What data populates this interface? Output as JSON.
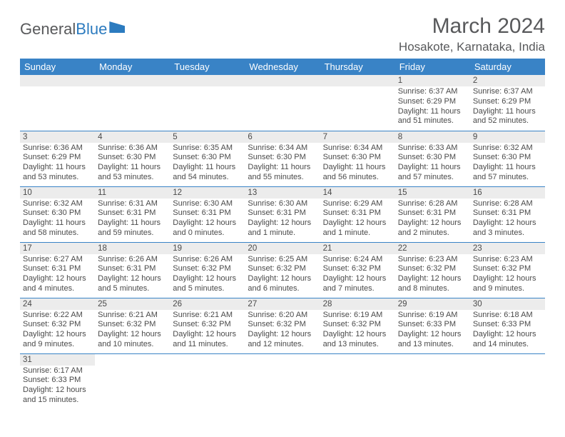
{
  "logo": {
    "text1": "General",
    "text2": "Blue"
  },
  "title": "March 2024",
  "location": "Hosakote, Karnataka, India",
  "colors": {
    "header_bg": "#3983c6",
    "header_fg": "#ffffff",
    "daynum_bg": "#ececec",
    "text": "#4a4a4a",
    "border": "#3983c6"
  },
  "day_headers": [
    "Sunday",
    "Monday",
    "Tuesday",
    "Wednesday",
    "Thursday",
    "Friday",
    "Saturday"
  ],
  "weeks": [
    [
      null,
      null,
      null,
      null,
      null,
      {
        "n": "1",
        "sr": "6:37 AM",
        "ss": "6:29 PM",
        "dl": "11 hours and 51 minutes."
      },
      {
        "n": "2",
        "sr": "6:37 AM",
        "ss": "6:29 PM",
        "dl": "11 hours and 52 minutes."
      }
    ],
    [
      {
        "n": "3",
        "sr": "6:36 AM",
        "ss": "6:29 PM",
        "dl": "11 hours and 53 minutes."
      },
      {
        "n": "4",
        "sr": "6:36 AM",
        "ss": "6:30 PM",
        "dl": "11 hours and 53 minutes."
      },
      {
        "n": "5",
        "sr": "6:35 AM",
        "ss": "6:30 PM",
        "dl": "11 hours and 54 minutes."
      },
      {
        "n": "6",
        "sr": "6:34 AM",
        "ss": "6:30 PM",
        "dl": "11 hours and 55 minutes."
      },
      {
        "n": "7",
        "sr": "6:34 AM",
        "ss": "6:30 PM",
        "dl": "11 hours and 56 minutes."
      },
      {
        "n": "8",
        "sr": "6:33 AM",
        "ss": "6:30 PM",
        "dl": "11 hours and 57 minutes."
      },
      {
        "n": "9",
        "sr": "6:32 AM",
        "ss": "6:30 PM",
        "dl": "11 hours and 57 minutes."
      }
    ],
    [
      {
        "n": "10",
        "sr": "6:32 AM",
        "ss": "6:30 PM",
        "dl": "11 hours and 58 minutes."
      },
      {
        "n": "11",
        "sr": "6:31 AM",
        "ss": "6:31 PM",
        "dl": "11 hours and 59 minutes."
      },
      {
        "n": "12",
        "sr": "6:30 AM",
        "ss": "6:31 PM",
        "dl": "12 hours and 0 minutes."
      },
      {
        "n": "13",
        "sr": "6:30 AM",
        "ss": "6:31 PM",
        "dl": "12 hours and 1 minute."
      },
      {
        "n": "14",
        "sr": "6:29 AM",
        "ss": "6:31 PM",
        "dl": "12 hours and 1 minute."
      },
      {
        "n": "15",
        "sr": "6:28 AM",
        "ss": "6:31 PM",
        "dl": "12 hours and 2 minutes."
      },
      {
        "n": "16",
        "sr": "6:28 AM",
        "ss": "6:31 PM",
        "dl": "12 hours and 3 minutes."
      }
    ],
    [
      {
        "n": "17",
        "sr": "6:27 AM",
        "ss": "6:31 PM",
        "dl": "12 hours and 4 minutes."
      },
      {
        "n": "18",
        "sr": "6:26 AM",
        "ss": "6:31 PM",
        "dl": "12 hours and 5 minutes."
      },
      {
        "n": "19",
        "sr": "6:26 AM",
        "ss": "6:32 PM",
        "dl": "12 hours and 5 minutes."
      },
      {
        "n": "20",
        "sr": "6:25 AM",
        "ss": "6:32 PM",
        "dl": "12 hours and 6 minutes."
      },
      {
        "n": "21",
        "sr": "6:24 AM",
        "ss": "6:32 PM",
        "dl": "12 hours and 7 minutes."
      },
      {
        "n": "22",
        "sr": "6:23 AM",
        "ss": "6:32 PM",
        "dl": "12 hours and 8 minutes."
      },
      {
        "n": "23",
        "sr": "6:23 AM",
        "ss": "6:32 PM",
        "dl": "12 hours and 9 minutes."
      }
    ],
    [
      {
        "n": "24",
        "sr": "6:22 AM",
        "ss": "6:32 PM",
        "dl": "12 hours and 9 minutes."
      },
      {
        "n": "25",
        "sr": "6:21 AM",
        "ss": "6:32 PM",
        "dl": "12 hours and 10 minutes."
      },
      {
        "n": "26",
        "sr": "6:21 AM",
        "ss": "6:32 PM",
        "dl": "12 hours and 11 minutes."
      },
      {
        "n": "27",
        "sr": "6:20 AM",
        "ss": "6:32 PM",
        "dl": "12 hours and 12 minutes."
      },
      {
        "n": "28",
        "sr": "6:19 AM",
        "ss": "6:32 PM",
        "dl": "12 hours and 13 minutes."
      },
      {
        "n": "29",
        "sr": "6:19 AM",
        "ss": "6:33 PM",
        "dl": "12 hours and 13 minutes."
      },
      {
        "n": "30",
        "sr": "6:18 AM",
        "ss": "6:33 PM",
        "dl": "12 hours and 14 minutes."
      }
    ],
    [
      {
        "n": "31",
        "sr": "6:17 AM",
        "ss": "6:33 PM",
        "dl": "12 hours and 15 minutes."
      },
      null,
      null,
      null,
      null,
      null,
      null
    ]
  ],
  "labels": {
    "sunrise": "Sunrise:",
    "sunset": "Sunset:",
    "daylight": "Daylight:"
  }
}
